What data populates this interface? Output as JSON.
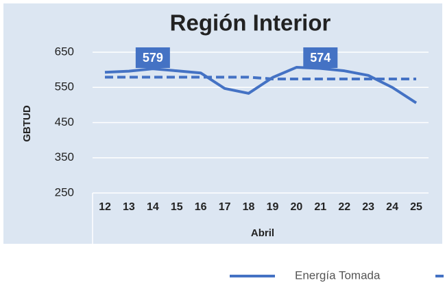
{
  "chart_data": {
    "type": "line",
    "title": "Región Interior",
    "y_label": "GBTUD",
    "x_label": "Abril",
    "categories": [
      "12",
      "13",
      "14",
      "15",
      "16",
      "17",
      "18",
      "19",
      "20",
      "21",
      "22",
      "23",
      "24",
      "25"
    ],
    "series": [
      {
        "name": "Energía Tomada",
        "color": "#4472c4",
        "dashed": false,
        "values": [
          593,
          596,
          603,
          597,
          591,
          547,
          533,
          578,
          607,
          604,
          597,
          584,
          550,
          506
        ]
      },
      {
        "color": "#4472c4",
        "dashed": true,
        "values": [
          579,
          579,
          579,
          579,
          579,
          579,
          579,
          574,
          574,
          574,
          574,
          574,
          574,
          574
        ],
        "value_labels": [
          null,
          null,
          "579",
          null,
          null,
          null,
          null,
          null,
          null,
          "574",
          null,
          null,
          null,
          null
        ]
      }
    ],
    "ylim": [
      250,
      650
    ],
    "yticks": [
      250,
      350,
      450,
      550,
      650
    ],
    "grid": true
  }
}
